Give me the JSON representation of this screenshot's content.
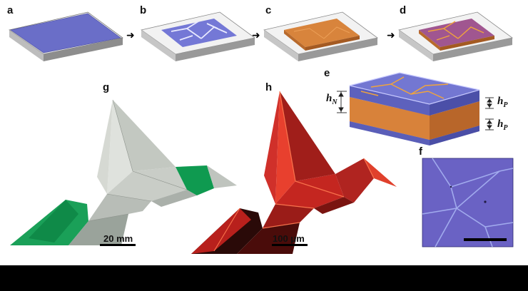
{
  "panels": {
    "a": "a",
    "b": "b",
    "c": "c",
    "d": "d",
    "e": "e",
    "f": "f",
    "g": "g",
    "h": "h"
  },
  "annotations": {
    "hN": "h",
    "hN_sub": "N",
    "hP": "h",
    "hP_sub": "P",
    "hP2": "h",
    "hP2_sub": "P"
  },
  "scale_bars": {
    "g": "20 mm",
    "h": "100 μm"
  },
  "arrow_glyph": "➜",
  "colors": {
    "polymer": "#6f73c8",
    "polymer_dark": "#4e52a6",
    "film": "#d9843a",
    "crease": "#f0a030",
    "substrate": "#eeeeee",
    "substrate_side": "#9c9c9c",
    "paper_green": "#1aa058",
    "paper_silver": "#c8ccc8",
    "fluorescence": "#e8302a"
  }
}
